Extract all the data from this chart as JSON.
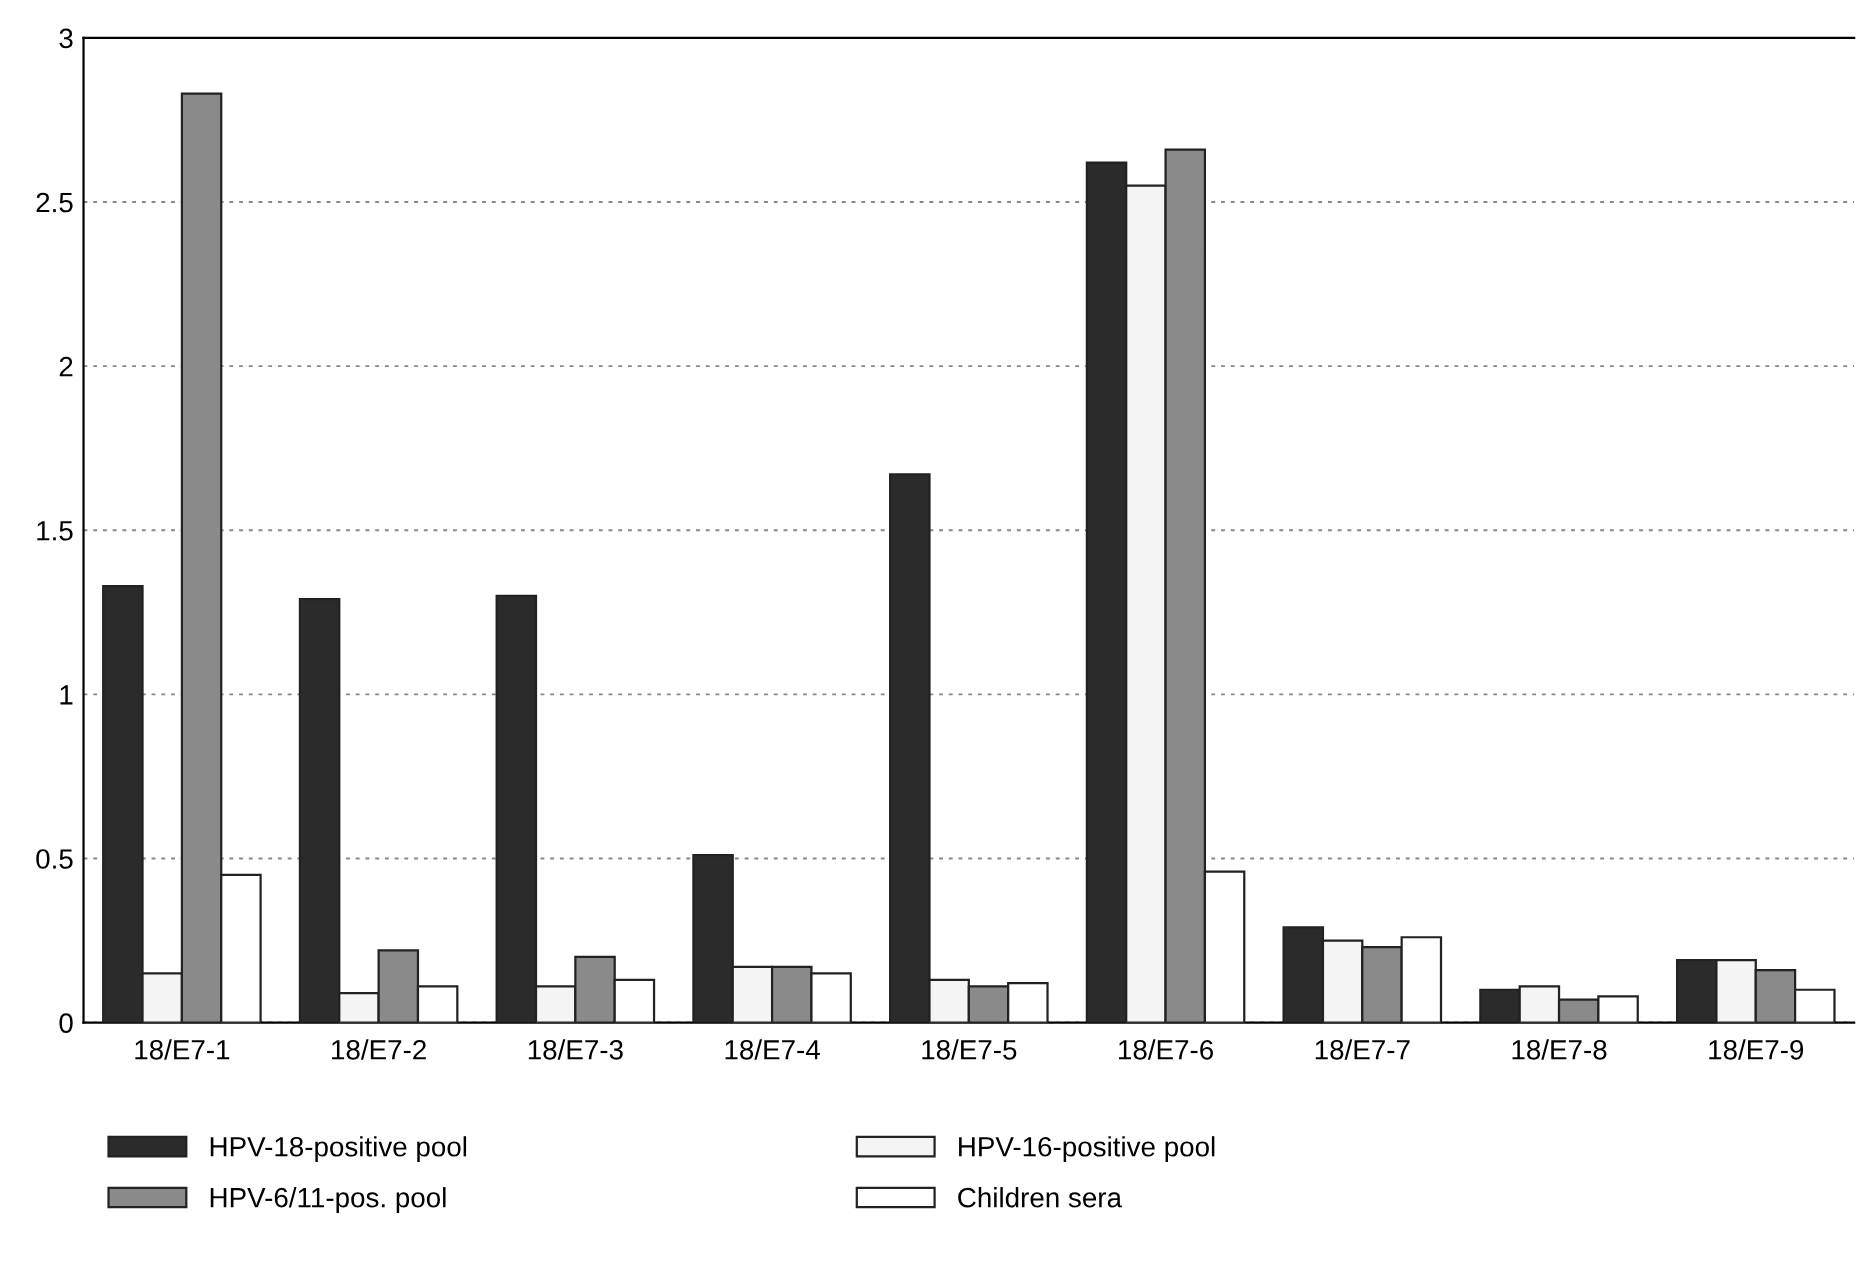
{
  "chart_data": {
    "type": "bar",
    "categories": [
      "18/E7-1",
      "18/E7-2",
      "18/E7-3",
      "18/E7-4",
      "18/E7-5",
      "18/E7-6",
      "18/E7-7",
      "18/E7-8",
      "18/E7-9"
    ],
    "series": [
      {
        "name": "HPV-18-positive pool",
        "color": "#2b2b2b",
        "values": [
          1.33,
          1.29,
          1.3,
          0.51,
          1.67,
          2.62,
          0.29,
          0.1,
          0.19
        ]
      },
      {
        "name": "HPV-16-positive pool",
        "color": "#f4f4f4",
        "values": [
          0.15,
          0.09,
          0.11,
          0.17,
          0.13,
          2.55,
          0.25,
          0.11,
          0.19
        ]
      },
      {
        "name": "HPV-6/11-pos. pool",
        "color": "#8a8a8a",
        "values": [
          2.83,
          0.22,
          0.2,
          0.17,
          0.11,
          2.66,
          0.23,
          0.07,
          0.16
        ]
      },
      {
        "name": "Children sera",
        "color": "#ffffff",
        "values": [
          0.45,
          0.11,
          0.13,
          0.15,
          0.12,
          0.46,
          0.26,
          0.08,
          0.1
        ]
      }
    ],
    "ylim": [
      0,
      3
    ],
    "yticks": [
      0,
      0.5,
      1,
      1.5,
      2,
      2.5,
      3
    ],
    "grid": "y",
    "legend": "bottom"
  }
}
